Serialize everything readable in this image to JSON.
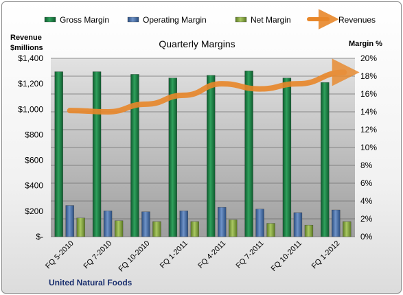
{
  "chart_data": {
    "type": "bar",
    "title": "Quarterly Margins",
    "footer": "United Natural Foods",
    "categories": [
      "FQ 5-2010",
      "FQ 7-2010",
      "FQ 10-2010",
      "FQ 1-2011",
      "FQ 4-2011",
      "FQ 7-2011",
      "FQ 10-2011",
      "FQ 1-2012"
    ],
    "left_axis": {
      "label_line1": "Revenue",
      "label_line2": "$millions",
      "ylim": [
        0,
        1400
      ],
      "ticks": [
        "$-",
        "$200",
        "$400",
        "$600",
        "$800",
        "$1,000",
        "$1,200",
        "$1,400"
      ]
    },
    "right_axis": {
      "label": "Margin %",
      "ylim": [
        0,
        20
      ],
      "ticks": [
        "0%",
        "2%",
        "4%",
        "6%",
        "8%",
        "10%",
        "12%",
        "14%",
        "16%",
        "18%",
        "20%"
      ]
    },
    "series": [
      {
        "name": "Gross Margin",
        "axis": "right",
        "color": "#1e7a45",
        "values": [
          18.5,
          18.5,
          18.2,
          17.8,
          18.1,
          18.6,
          17.8,
          17.3
        ]
      },
      {
        "name": "Operating Margin",
        "axis": "right",
        "color": "#4a6fa5",
        "values": [
          3.5,
          2.9,
          2.8,
          2.9,
          3.3,
          3.1,
          2.7,
          3.0
        ]
      },
      {
        "name": "Net Margin",
        "axis": "right",
        "color": "#8aa845",
        "values": [
          2.1,
          1.8,
          1.7,
          1.7,
          1.9,
          1.5,
          1.3,
          1.7
        ]
      }
    ],
    "trend": {
      "name": "Revenues",
      "axis": "left",
      "color": "#e8872a",
      "values": [
        990,
        980,
        1040,
        1110,
        1200,
        1160,
        1200,
        1290
      ]
    },
    "grid": true,
    "legend_position": "top"
  }
}
